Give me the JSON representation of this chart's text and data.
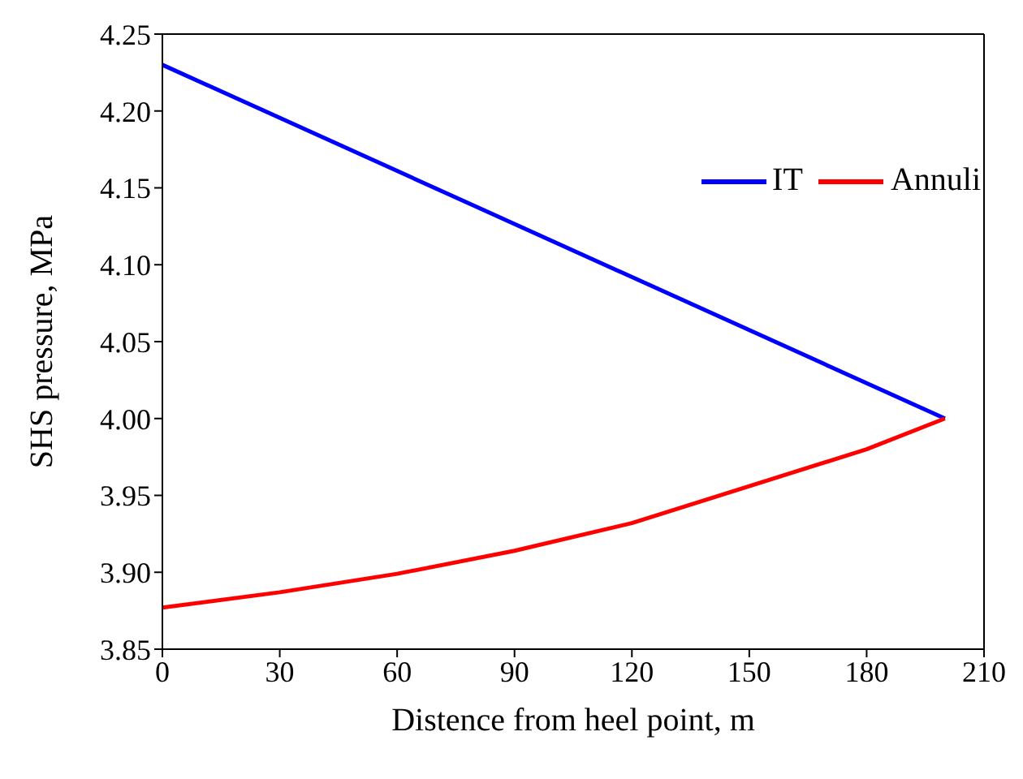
{
  "chart_data": {
    "type": "line",
    "xlabel": "Distence from heel point, m",
    "ylabel": "SHS pressure, MPa",
    "xlim": [
      0,
      210
    ],
    "xticks": [
      0,
      30,
      60,
      90,
      120,
      150,
      180,
      210
    ],
    "ylim": [
      3.85,
      4.25
    ],
    "yticks": [
      {
        "value": 3.85,
        "label": "3.85"
      },
      {
        "value": 3.9,
        "label": "3.90"
      },
      {
        "value": 3.95,
        "label": "3.95"
      },
      {
        "value": 4.0,
        "label": "4.00"
      },
      {
        "value": 4.05,
        "label": "4.05"
      },
      {
        "value": 4.1,
        "label": "4.10"
      },
      {
        "value": 4.15,
        "label": "4.15"
      },
      {
        "value": 4.2,
        "label": "4.20"
      },
      {
        "value": 4.25,
        "label": "4.25"
      }
    ],
    "legend": "top right",
    "marker": "none",
    "line_style": "solid",
    "series": [
      {
        "name": "IT",
        "color": "#0000ff",
        "x": [
          0,
          200
        ],
        "values": [
          4.23,
          4.0
        ]
      },
      {
        "name": "Annuli",
        "color": "#ff0000",
        "x": [
          0,
          30,
          60,
          90,
          120,
          150,
          180,
          200
        ],
        "values": [
          3.877,
          3.887,
          3.899,
          3.914,
          3.932,
          3.956,
          3.98,
          4.0
        ]
      }
    ]
  }
}
